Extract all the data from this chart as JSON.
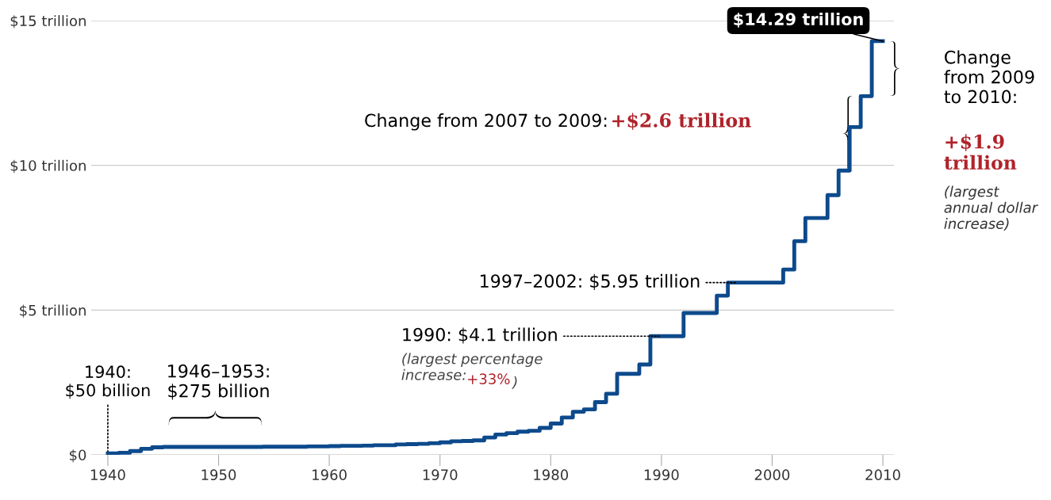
{
  "chart_data": {
    "type": "step",
    "x": [
      1940,
      1941,
      1942,
      1943,
      1944,
      1945,
      1946,
      1947,
      1948,
      1949,
      1950,
      1951,
      1952,
      1953,
      1954,
      1955,
      1956,
      1957,
      1958,
      1959,
      1960,
      1961,
      1962,
      1963,
      1964,
      1965,
      1966,
      1967,
      1968,
      1969,
      1970,
      1971,
      1972,
      1973,
      1974,
      1975,
      1976,
      1977,
      1978,
      1979,
      1980,
      1981,
      1982,
      1983,
      1984,
      1985,
      1986,
      1987,
      1988,
      1989,
      1990,
      1991,
      1992,
      1993,
      1994,
      1995,
      1996,
      1997,
      1998,
      1999,
      2000,
      2001,
      2002,
      2003,
      2004,
      2005,
      2006,
      2007,
      2008,
      2009,
      2010
    ],
    "series": [
      {
        "color": "#0d4a8c",
        "values": [
          0.05,
          0.07,
          0.13,
          0.21,
          0.26,
          0.275,
          0.275,
          0.275,
          0.275,
          0.275,
          0.275,
          0.275,
          0.275,
          0.275,
          0.28,
          0.28,
          0.28,
          0.28,
          0.29,
          0.29,
          0.3,
          0.31,
          0.31,
          0.32,
          0.33,
          0.33,
          0.36,
          0.37,
          0.38,
          0.4,
          0.43,
          0.47,
          0.48,
          0.5,
          0.6,
          0.7,
          0.75,
          0.8,
          0.83,
          0.93,
          1.08,
          1.29,
          1.49,
          1.57,
          1.82,
          2.11,
          2.8,
          2.8,
          3.12,
          4.1,
          4.1,
          4.1,
          4.9,
          4.9,
          4.9,
          5.5,
          5.95,
          5.95,
          5.95,
          5.95,
          5.95,
          6.4,
          7.38,
          8.18,
          8.18,
          8.97,
          9.82,
          11.32,
          12.39,
          14.29,
          14.29
        ]
      }
    ],
    "xlim": [
      1938.5,
      2011
    ],
    "xticks": [
      1940,
      1950,
      1960,
      1970,
      1980,
      1990,
      2000,
      2010
    ],
    "ylim": [
      0,
      15
    ],
    "yticks": [
      {
        "value": 0,
        "label": "$0"
      },
      {
        "value": 5,
        "label": "$5 trillion"
      },
      {
        "value": 10,
        "label": "$10 trillion"
      },
      {
        "value": 15,
        "label": "$15 trillion"
      }
    ],
    "grid": "y",
    "annotations": [
      {
        "text": "$14.29 trillion",
        "x": 2010,
        "y": 14.29
      },
      "Change from 2009 to 2010:",
      "+$1.9 trillion",
      "(largest annual dollar increase)",
      "Change from 2007 to 2009:",
      "+$2.6 trillion",
      {
        "text": "1997–2002: $5.95 trillion",
        "x": 1997,
        "y": 5.95
      },
      {
        "text": "1990: $4.1 trillion",
        "x": 1990,
        "y": 4.1
      },
      "(largest percentage increase:",
      "+33%",
      ")",
      {
        "text": "1940: $50 billion",
        "x": 1940,
        "y": 0.05
      },
      "1946–1953: $275 billion"
    ]
  }
}
